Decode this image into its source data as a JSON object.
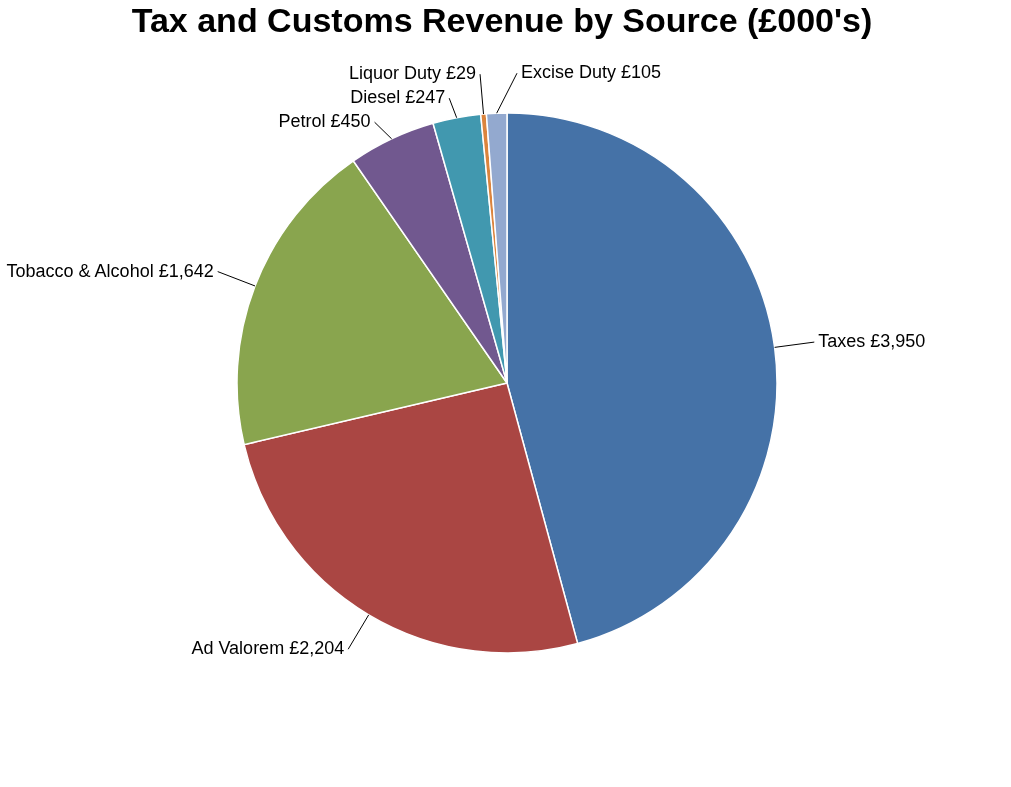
{
  "chart_data": {
    "type": "pie",
    "title": "Tax and Customs Revenue by Source (£000's)",
    "categories": [
      "Taxes",
      "Ad Valorem",
      "Tobacco & Alcohol",
      "Petrol",
      "Diesel",
      "Liquor Duty",
      "Excise Duty"
    ],
    "values": [
      3950,
      2204,
      1642,
      450,
      247,
      29,
      105
    ],
    "colors": [
      "#4572a7",
      "#aa4643",
      "#89a54e",
      "#71588f",
      "#4198af",
      "#db843d",
      "#93a9cf"
    ],
    "value_labels": [
      "£3,950",
      "£2,204",
      "£1,642",
      "£450",
      "£247",
      "£29",
      "£105"
    ]
  }
}
